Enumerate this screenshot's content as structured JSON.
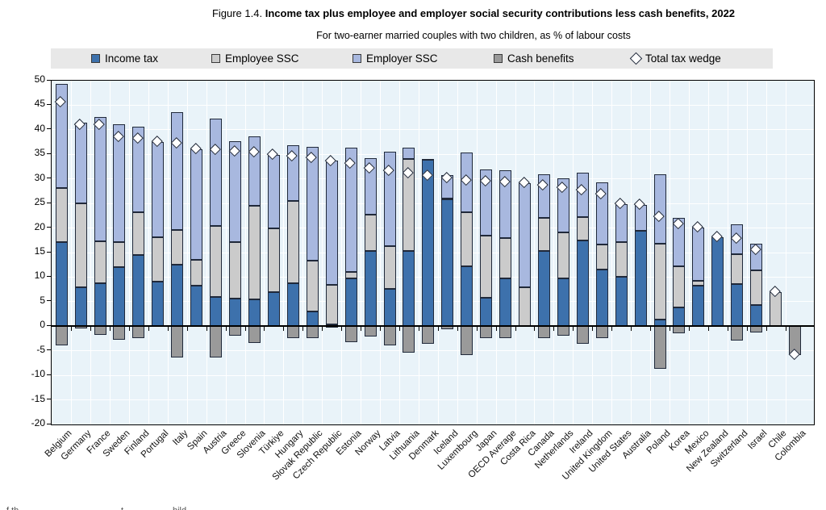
{
  "header": {
    "figure_label": "Figure 1.4.",
    "title": "Income tax plus employee and employer social security contributions less cash benefits, 2022",
    "subtitle": "For two-earner married couples with two children, as % of labour costs"
  },
  "legend": {
    "items": [
      {
        "label": "Income tax",
        "swatch": "income_tax"
      },
      {
        "label": "Employee SSC",
        "swatch": "employee_ssc"
      },
      {
        "label": "Employer SSC",
        "swatch": "employer_ssc"
      },
      {
        "label": "Cash benefits",
        "swatch": "cash_benefits"
      },
      {
        "label": "Total tax wedge",
        "swatch": "marker"
      }
    ]
  },
  "colors": {
    "income_tax": "#3d71ac",
    "employee_ssc": "#cbcbcb",
    "employer_ssc": "#a8b8df",
    "cash_benefits": "#9a9a9a",
    "marker_fill": "#ffffff",
    "bar_border": "#20293a",
    "plot_background": "#e9f3f9",
    "gridline": "#ffffff",
    "legend_background": "#e8e8e8"
  },
  "footnote_fragments": [
    {
      "text": "f th",
      "x": 8
    },
    {
      "text": "t",
      "x": 150
    },
    {
      "text": "hild",
      "x": 214
    }
  ],
  "chart_data": {
    "type": "bar",
    "subtype": "stacked-bar-with-diamond-marker",
    "ylim": [
      -20,
      50
    ],
    "ytick_step": 5,
    "ytick_labels": [
      "50",
      "45",
      "40",
      "35",
      "30",
      "25",
      "20",
      "15",
      "10",
      "5",
      "0",
      "-5",
      "-10",
      "-15",
      "-20"
    ],
    "grid": "on",
    "legend_position": "top",
    "series_names": [
      "Income tax",
      "Employee SSC",
      "Employer SSC",
      "Cash benefits"
    ],
    "marker_name": "Total tax wedge",
    "countries": [
      {
        "name": "Belgium",
        "income_tax": 17.2,
        "employee_ssc": 10.9,
        "employer_ssc": 21.3,
        "cash_benefits": -3.9,
        "total_tax_wedge": 45.5
      },
      {
        "name": "Germany",
        "income_tax": 8.0,
        "employee_ssc": 17.0,
        "employer_ssc": 16.4,
        "cash_benefits": -0.5,
        "total_tax_wedge": 40.9
      },
      {
        "name": "France",
        "income_tax": 8.8,
        "employee_ssc": 8.5,
        "employer_ssc": 25.3,
        "cash_benefits": -1.7,
        "total_tax_wedge": 40.9
      },
      {
        "name": "Sweden",
        "income_tax": 12.0,
        "employee_ssc": 5.2,
        "employer_ssc": 24.0,
        "cash_benefits": -2.7,
        "total_tax_wedge": 38.5
      },
      {
        "name": "Finland",
        "income_tax": 14.5,
        "employee_ssc": 8.7,
        "employer_ssc": 17.4,
        "cash_benefits": -2.5,
        "total_tax_wedge": 38.1
      },
      {
        "name": "Portugal",
        "income_tax": 9.1,
        "employee_ssc": 9.1,
        "employer_ssc": 19.3,
        "cash_benefits": 0.0,
        "total_tax_wedge": 37.5
      },
      {
        "name": "Italy",
        "income_tax": 12.5,
        "employee_ssc": 7.1,
        "employer_ssc": 24.0,
        "cash_benefits": -6.4,
        "total_tax_wedge": 37.2
      },
      {
        "name": "Spain",
        "income_tax": 8.3,
        "employee_ssc": 5.2,
        "employer_ssc": 22.6,
        "cash_benefits": 0.0,
        "total_tax_wedge": 36.1
      },
      {
        "name": "Austria",
        "income_tax": 5.9,
        "employee_ssc": 14.5,
        "employer_ssc": 21.8,
        "cash_benefits": -6.4,
        "total_tax_wedge": 35.8
      },
      {
        "name": "Greece",
        "income_tax": 5.7,
        "employee_ssc": 11.5,
        "employer_ssc": 20.4,
        "cash_benefits": -2.0,
        "total_tax_wedge": 35.6
      },
      {
        "name": "Slovenia",
        "income_tax": 5.5,
        "employee_ssc": 19.1,
        "employer_ssc": 14.1,
        "cash_benefits": -3.4,
        "total_tax_wedge": 35.3
      },
      {
        "name": "Türkiye",
        "income_tax": 6.9,
        "employee_ssc": 13.0,
        "employer_ssc": 15.0,
        "cash_benefits": 0.0,
        "total_tax_wedge": 34.9
      },
      {
        "name": "Hungary",
        "income_tax": 8.8,
        "employee_ssc": 16.7,
        "employer_ssc": 11.4,
        "cash_benefits": -2.4,
        "total_tax_wedge": 34.5
      },
      {
        "name": "Slovak Republic",
        "income_tax": 3.0,
        "employee_ssc": 10.4,
        "employer_ssc": 23.2,
        "cash_benefits": -2.4,
        "total_tax_wedge": 34.2
      },
      {
        "name": "Czech Republic",
        "income_tax": 0.4,
        "employee_ssc": 8.1,
        "employer_ssc": 25.3,
        "cash_benefits": -0.3,
        "total_tax_wedge": 33.5
      },
      {
        "name": "Estonia",
        "income_tax": 9.8,
        "employee_ssc": 1.2,
        "employer_ssc": 25.3,
        "cash_benefits": -3.3,
        "total_tax_wedge": 33.0
      },
      {
        "name": "Norway",
        "income_tax": 15.4,
        "employee_ssc": 7.3,
        "employer_ssc": 11.5,
        "cash_benefits": -2.1,
        "total_tax_wedge": 32.1
      },
      {
        "name": "Latvia",
        "income_tax": 7.6,
        "employee_ssc": 8.7,
        "employer_ssc": 19.2,
        "cash_benefits": -3.9,
        "total_tax_wedge": 31.6
      },
      {
        "name": "Lithuania",
        "income_tax": 15.3,
        "employee_ssc": 18.7,
        "employer_ssc": 2.4,
        "cash_benefits": -5.3,
        "total_tax_wedge": 31.1
      },
      {
        "name": "Denmark",
        "income_tax": 34.0,
        "employee_ssc": 0.0,
        "employer_ssc": 0.1,
        "cash_benefits": -3.5,
        "total_tax_wedge": 30.6
      },
      {
        "name": "Iceland",
        "income_tax": 25.9,
        "employee_ssc": 0.1,
        "employer_ssc": 4.7,
        "cash_benefits": -0.6,
        "total_tax_wedge": 30.1
      },
      {
        "name": "Luxembourg",
        "income_tax": 12.2,
        "employee_ssc": 11.0,
        "employer_ssc": 12.2,
        "cash_benefits": -5.8,
        "total_tax_wedge": 29.6
      },
      {
        "name": "Japan",
        "income_tax": 5.8,
        "employee_ssc": 12.7,
        "employer_ssc": 13.4,
        "cash_benefits": -2.5,
        "total_tax_wedge": 29.4
      },
      {
        "name": "OECD Average",
        "income_tax": 9.8,
        "employee_ssc": 8.2,
        "employer_ssc": 13.8,
        "cash_benefits": -2.5,
        "total_tax_wedge": 29.3
      },
      {
        "name": "Costa Rica",
        "income_tax": 0.0,
        "employee_ssc": 8.0,
        "employer_ssc": 21.2,
        "cash_benefits": 0.0,
        "total_tax_wedge": 29.2
      },
      {
        "name": "Canada",
        "income_tax": 15.4,
        "employee_ssc": 6.6,
        "employer_ssc": 9.0,
        "cash_benefits": -2.4,
        "total_tax_wedge": 28.6
      },
      {
        "name": "Netherlands",
        "income_tax": 9.8,
        "employee_ssc": 9.3,
        "employer_ssc": 11.0,
        "cash_benefits": -1.9,
        "total_tax_wedge": 28.2
      },
      {
        "name": "Ireland",
        "income_tax": 17.5,
        "employee_ssc": 4.8,
        "employer_ssc": 8.9,
        "cash_benefits": -3.6,
        "total_tax_wedge": 27.6
      },
      {
        "name": "United Kingdom",
        "income_tax": 11.5,
        "employee_ssc": 5.1,
        "employer_ssc": 12.7,
        "cash_benefits": -2.5,
        "total_tax_wedge": 26.8
      },
      {
        "name": "United States",
        "income_tax": 10.0,
        "employee_ssc": 7.1,
        "employer_ssc": 7.7,
        "cash_benefits": 0.0,
        "total_tax_wedge": 24.8
      },
      {
        "name": "Australia",
        "income_tax": 19.4,
        "employee_ssc": 0.0,
        "employer_ssc": 5.3,
        "cash_benefits": 0.0,
        "total_tax_wedge": 24.7
      },
      {
        "name": "Poland",
        "income_tax": 1.3,
        "employee_ssc": 15.5,
        "employer_ssc": 14.1,
        "cash_benefits": -8.7,
        "total_tax_wedge": 22.2
      },
      {
        "name": "Korea",
        "income_tax": 3.9,
        "employee_ssc": 8.3,
        "employer_ssc": 9.9,
        "cash_benefits": -1.4,
        "total_tax_wedge": 20.7
      },
      {
        "name": "Mexico",
        "income_tax": 8.3,
        "employee_ssc": 1.0,
        "employer_ssc": 10.8,
        "cash_benefits": 0.0,
        "total_tax_wedge": 20.1
      },
      {
        "name": "New Zealand",
        "income_tax": 18.2,
        "employee_ssc": 0.0,
        "employer_ssc": 0.0,
        "cash_benefits": 0.0,
        "total_tax_wedge": 18.2
      },
      {
        "name": "Switzerland",
        "income_tax": 8.6,
        "employee_ssc": 6.0,
        "employer_ssc": 6.1,
        "cash_benefits": -2.9,
        "total_tax_wedge": 17.8
      },
      {
        "name": "Israel",
        "income_tax": 4.4,
        "employee_ssc": 7.0,
        "employer_ssc": 5.4,
        "cash_benefits": -1.3,
        "total_tax_wedge": 15.5
      },
      {
        "name": "Chile",
        "income_tax": 0.0,
        "employee_ssc": 7.0,
        "employer_ssc": 0.0,
        "cash_benefits": 0.0,
        "total_tax_wedge": 7.0
      },
      {
        "name": "Colombia",
        "income_tax": 0.0,
        "employee_ssc": 0.0,
        "employer_ssc": 0.0,
        "cash_benefits": -5.9,
        "total_tax_wedge": -5.9
      }
    ]
  }
}
